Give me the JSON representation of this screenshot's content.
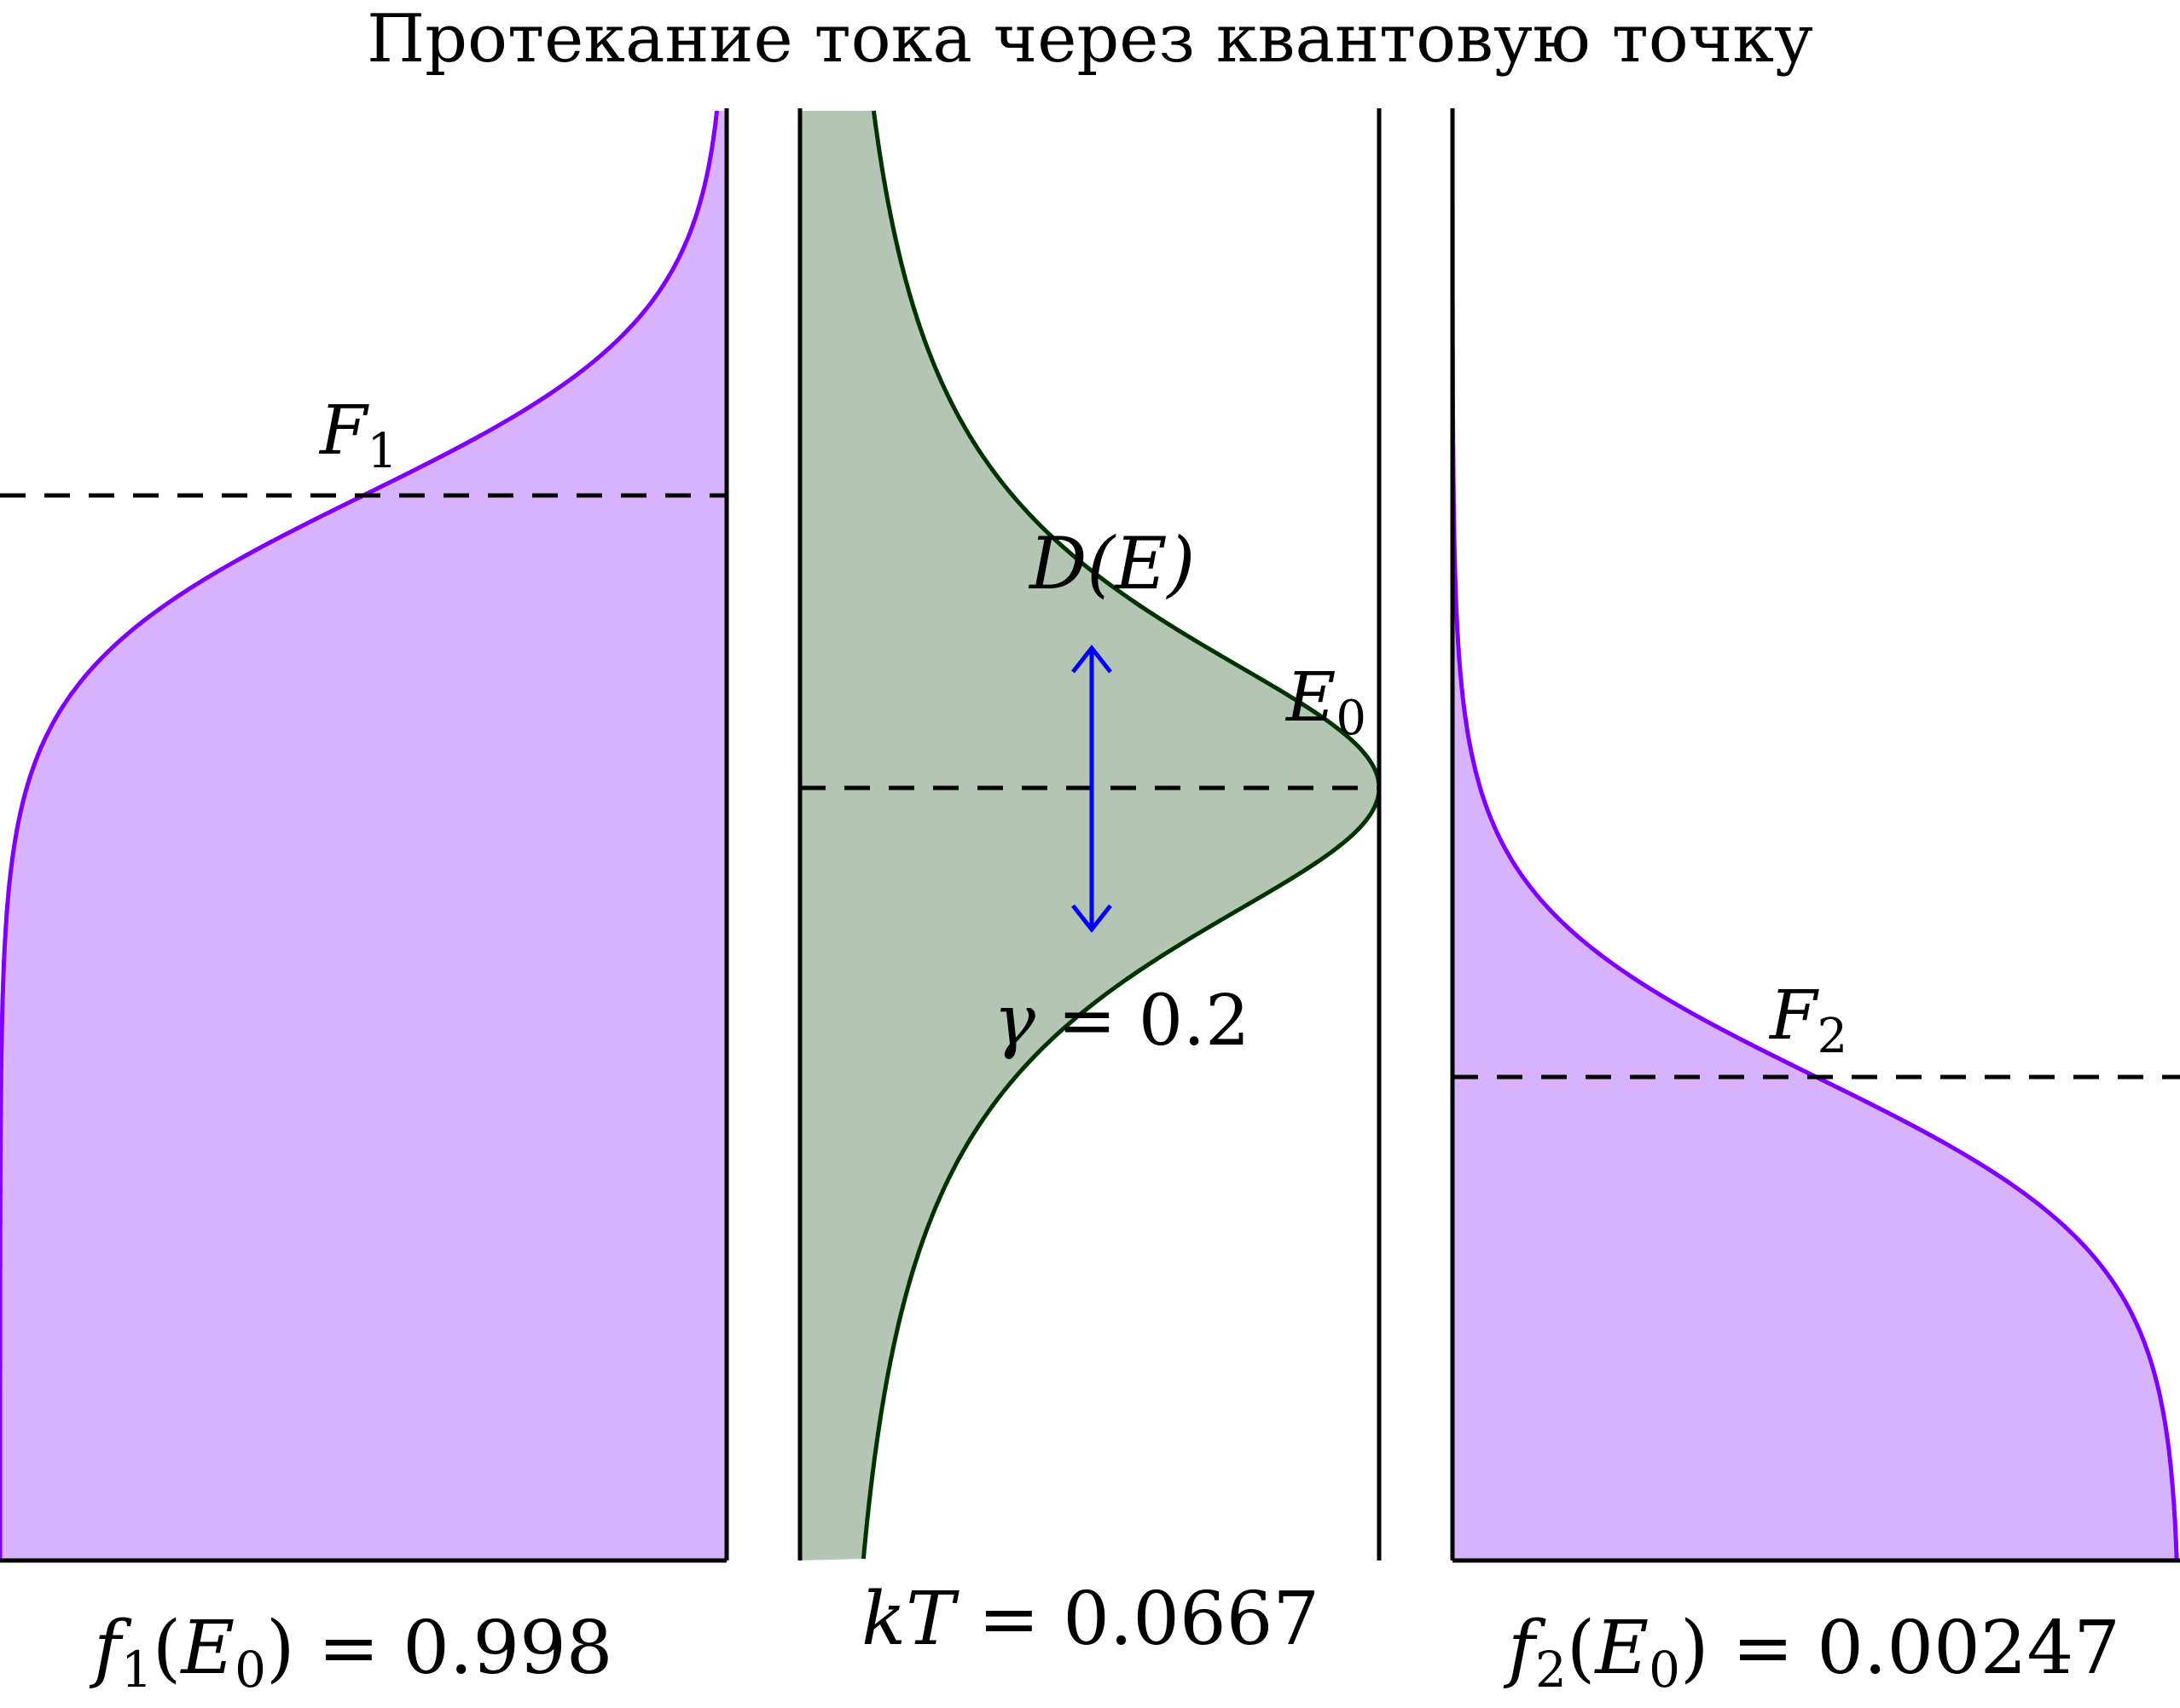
{
  "title": "Протекание тока через квантовую точку",
  "colors": {
    "fermi_fill": "#d8b2fd",
    "fermi_stroke": "#7f00ff",
    "dos_fill": "#b4c5b4",
    "dos_stroke": "#003300",
    "gamma_arrow": "#0000ff",
    "axis": "#000000"
  },
  "labels": {
    "F1": {
      "base": "F",
      "sub": "1"
    },
    "F2": {
      "base": "F",
      "sub": "2"
    },
    "DE": "D(E)",
    "E0": {
      "base": "E",
      "sub": "0"
    },
    "gamma": {
      "symbol": "γ",
      "eq": " = 0.2"
    },
    "kT": {
      "symbol": "kT",
      "eq": " = 0.0667"
    },
    "f1": {
      "fn": "f",
      "fnsub": "1",
      "arg": "E",
      "argsub": "0",
      "eq": " = 0.998"
    },
    "f2": {
      "fn": "f",
      "fnsub": "2",
      "arg": "E",
      "argsub": "0",
      "eq": " = 0.00247"
    }
  },
  "chart_data": {
    "type": "area",
    "panels": [
      {
        "name": "lead-1",
        "function": "fermi-dirac",
        "fermi_level_label": "F1",
        "value_at_E0": 0.998
      },
      {
        "name": "quantum-dot",
        "function": "lorentzian",
        "center_label": "E0",
        "gamma": 0.2
      },
      {
        "name": "lead-2",
        "function": "fermi-dirac",
        "fermi_level_label": "F2",
        "value_at_E0": 0.00247
      }
    ],
    "kT": 0.0667
  }
}
